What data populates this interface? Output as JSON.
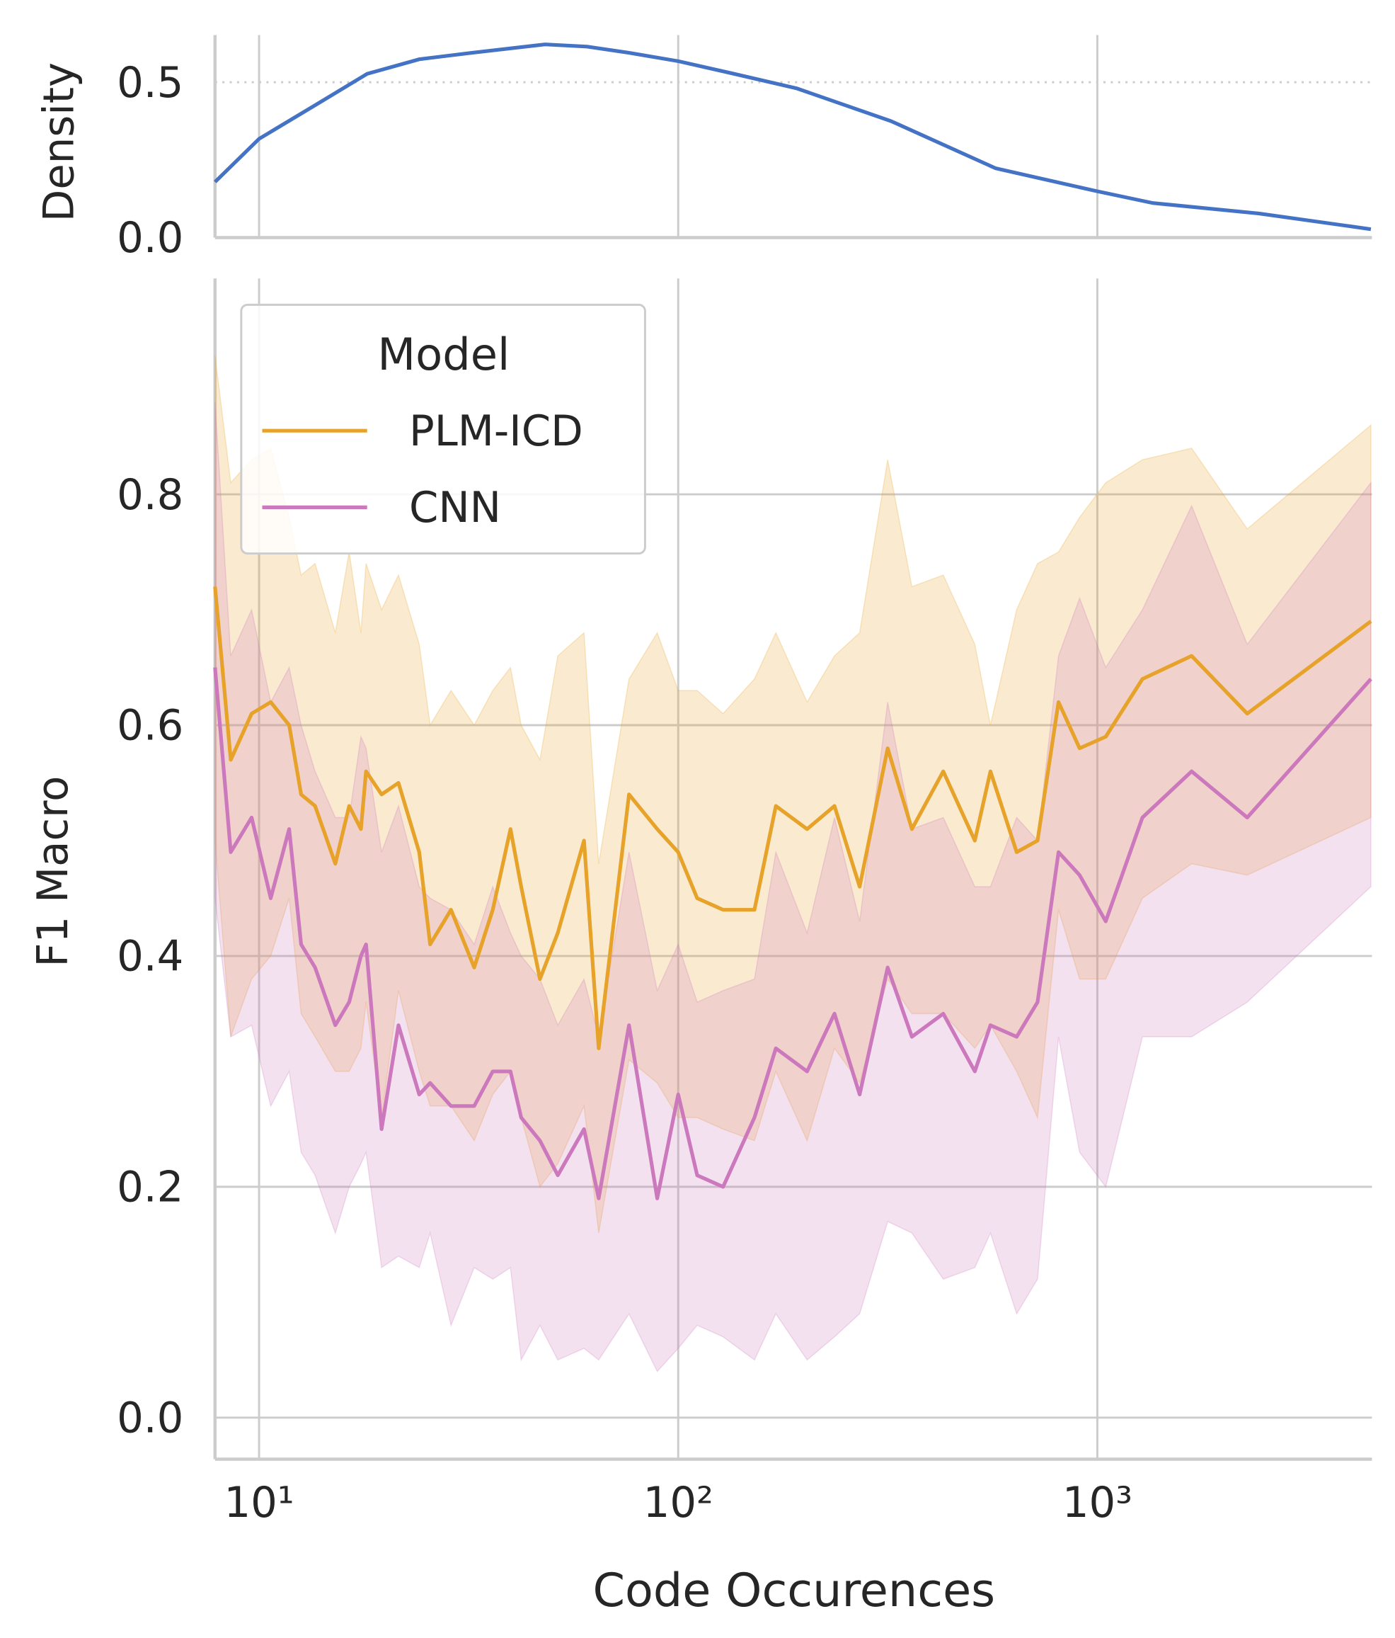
{
  "chart_data": [
    {
      "type": "line",
      "ylabel": "Density",
      "xscale": "log",
      "xlim": [
        7.85,
        4520
      ],
      "ylim": [
        0,
        0.652
      ],
      "xticks": [
        10,
        100,
        1000
      ],
      "yticks": [
        {
          "value": 0,
          "label": "0.0"
        },
        {
          "value": 0.5,
          "label": "0.5"
        }
      ],
      "grid": "x-solid-y-dotted",
      "x": [
        7.85,
        10,
        13.6,
        18.1,
        24.1,
        32.2,
        48.1,
        60.6,
        76.3,
        100,
        136,
        192,
        322,
        572,
        1000,
        1357,
        2413,
        4495
      ],
      "series": [
        {
          "color": "#4472c4",
          "values": [
            0.179,
            0.318,
            0.426,
            0.527,
            0.574,
            0.595,
            0.622,
            0.615,
            0.595,
            0.568,
            0.527,
            0.48,
            0.375,
            0.223,
            0.149,
            0.111,
            0.078,
            0.027
          ]
        }
      ]
    },
    {
      "type": "band-line",
      "xlabel": "Code Occurences",
      "ylabel": "F1 Macro",
      "xscale": "log",
      "xlim": [
        7.85,
        4520
      ],
      "ylim": [
        -0.036,
        0.987
      ],
      "xticks": [
        {
          "value": 10,
          "label": "10¹"
        },
        {
          "value": 100,
          "label": "10²"
        },
        {
          "value": 1000,
          "label": "10³"
        }
      ],
      "yticks": [
        {
          "value": 0,
          "label": "0.0"
        },
        {
          "value": 0.2,
          "label": "0.2"
        },
        {
          "value": 0.4,
          "label": "0.4"
        },
        {
          "value": 0.6,
          "label": "0.6"
        },
        {
          "value": 0.8,
          "label": "0.8"
        }
      ],
      "grid": "xy-solid",
      "legend_title": "Model",
      "legend": "upper left",
      "x": [
        7.85,
        8.56,
        9.6,
        10.66,
        11.8,
        12.6,
        13.6,
        15.2,
        16.4,
        17.5,
        18.0,
        19.6,
        21.5,
        24.1,
        25.6,
        28.7,
        32.6,
        36.1,
        39.8,
        42.2,
        46.8,
        51.6,
        59.6,
        64.6,
        76.3,
        89.1,
        100,
        111,
        128,
        152,
        171,
        203,
        236,
        271,
        316,
        361,
        429,
        510,
        556,
        642,
        720,
        808,
        907,
        1047,
        1281,
        1679,
        2278,
        4495
      ],
      "series": [
        {
          "name": "PLM-ICD",
          "color": "#e6a229",
          "values": [
            0.72,
            0.57,
            0.61,
            0.62,
            0.6,
            0.54,
            0.53,
            0.48,
            0.53,
            0.51,
            0.56,
            0.54,
            0.55,
            0.49,
            0.41,
            0.44,
            0.39,
            0.44,
            0.51,
            0.46,
            0.38,
            0.42,
            0.5,
            0.32,
            0.54,
            0.51,
            0.49,
            0.45,
            0.44,
            0.44,
            0.53,
            0.51,
            0.53,
            0.46,
            0.58,
            0.51,
            0.56,
            0.5,
            0.56,
            0.49,
            0.5,
            0.62,
            0.58,
            0.59,
            0.64,
            0.66,
            0.61,
            0.69
          ],
          "lower": [
            0.5,
            0.33,
            0.38,
            0.4,
            0.45,
            0.35,
            0.33,
            0.3,
            0.3,
            0.32,
            0.36,
            0.26,
            0.37,
            0.3,
            0.27,
            0.27,
            0.24,
            0.28,
            0.3,
            0.26,
            0.2,
            0.22,
            0.27,
            0.16,
            0.31,
            0.29,
            0.26,
            0.26,
            0.25,
            0.24,
            0.3,
            0.24,
            0.32,
            0.29,
            0.38,
            0.35,
            0.35,
            0.32,
            0.34,
            0.3,
            0.26,
            0.44,
            0.38,
            0.38,
            0.45,
            0.48,
            0.47,
            0.52
          ],
          "upper": [
            0.92,
            0.81,
            0.83,
            0.84,
            0.78,
            0.73,
            0.74,
            0.68,
            0.75,
            0.68,
            0.74,
            0.7,
            0.73,
            0.67,
            0.6,
            0.63,
            0.6,
            0.63,
            0.65,
            0.6,
            0.57,
            0.66,
            0.68,
            0.48,
            0.64,
            0.68,
            0.63,
            0.63,
            0.61,
            0.64,
            0.68,
            0.62,
            0.66,
            0.68,
            0.83,
            0.72,
            0.73,
            0.67,
            0.6,
            0.7,
            0.74,
            0.75,
            0.78,
            0.81,
            0.83,
            0.84,
            0.77,
            0.86
          ]
        },
        {
          "name": "CNN",
          "color": "#cc78bc",
          "values": [
            0.65,
            0.49,
            0.52,
            0.45,
            0.51,
            0.41,
            0.39,
            0.34,
            0.36,
            0.4,
            0.41,
            0.25,
            0.34,
            0.28,
            0.29,
            0.27,
            0.27,
            0.3,
            0.3,
            0.26,
            0.24,
            0.21,
            0.25,
            0.19,
            0.34,
            0.19,
            0.28,
            0.21,
            0.2,
            0.26,
            0.32,
            0.3,
            0.35,
            0.28,
            0.39,
            0.33,
            0.35,
            0.3,
            0.34,
            0.33,
            0.36,
            0.49,
            0.47,
            0.43,
            0.52,
            0.56,
            0.52,
            0.64
          ],
          "lower": [
            0.45,
            0.33,
            0.34,
            0.27,
            0.3,
            0.23,
            0.21,
            0.16,
            0.2,
            0.22,
            0.23,
            0.13,
            0.14,
            0.13,
            0.16,
            0.08,
            0.13,
            0.12,
            0.13,
            0.05,
            0.08,
            0.05,
            0.06,
            0.05,
            0.09,
            0.04,
            0.06,
            0.08,
            0.07,
            0.05,
            0.09,
            0.05,
            0.07,
            0.09,
            0.17,
            0.16,
            0.12,
            0.13,
            0.16,
            0.09,
            0.12,
            0.33,
            0.23,
            0.2,
            0.33,
            0.33,
            0.36,
            0.46
          ],
          "upper": [
            0.88,
            0.66,
            0.7,
            0.62,
            0.65,
            0.6,
            0.56,
            0.52,
            0.52,
            0.59,
            0.58,
            0.49,
            0.53,
            0.46,
            0.45,
            0.44,
            0.41,
            0.46,
            0.42,
            0.4,
            0.38,
            0.34,
            0.38,
            0.33,
            0.49,
            0.37,
            0.41,
            0.36,
            0.37,
            0.38,
            0.49,
            0.42,
            0.52,
            0.43,
            0.62,
            0.51,
            0.52,
            0.46,
            0.46,
            0.52,
            0.5,
            0.66,
            0.71,
            0.65,
            0.7,
            0.79,
            0.67,
            0.81
          ]
        }
      ]
    }
  ]
}
